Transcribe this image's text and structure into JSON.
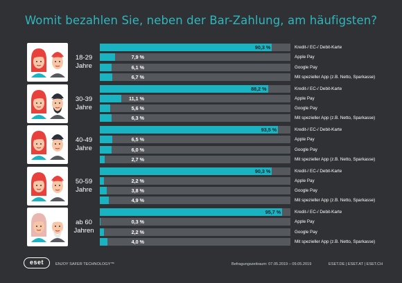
{
  "title": "Womit bezahlen Sie, neben der Bar-Zahlung, am häufigsten?",
  "footer": {
    "logo": "eset",
    "tagline": "ENJOY SAFER TECHNOLOGY™",
    "period": "Befragungszeitraum: 07.05.2019 – 09.05.2019",
    "links": "ESET.DE  |  ESET.AT  |  ESET.CH"
  },
  "colors": {
    "background": "#2f3135",
    "accent": "#19b3c1",
    "track": "#55585c",
    "title": "#2fb7bd"
  },
  "chart_data": {
    "type": "bar",
    "orientation": "horizontal",
    "xlim": [
      0,
      100
    ],
    "unit": "%",
    "categories": [
      "Kredit-/ EC-/ Debit-Karte",
      "Apple Pay",
      "Google Pay",
      "Mit spezieller App (z.B. Netto, Sparkasse)"
    ],
    "groups": [
      {
        "age": "18-29\nJahre",
        "values": [
          90.3,
          7.9,
          6.1,
          6.7
        ],
        "labels": [
          "90,3 %",
          "7,9 %",
          "6,1 %",
          "6,7 %"
        ]
      },
      {
        "age": "30-39\nJahre",
        "values": [
          88.2,
          11.1,
          5.6,
          6.3
        ],
        "labels": [
          "88,2 %",
          "11,1 %",
          "5,6 %",
          "6,3 %"
        ]
      },
      {
        "age": "40-49\nJahre",
        "values": [
          93.5,
          6.5,
          6.0,
          2.7
        ],
        "labels": [
          "93,5 %",
          "6,5 %",
          "6,0 %",
          "2,7 %"
        ]
      },
      {
        "age": "50-59\nJahre",
        "values": [
          90.3,
          2.2,
          3.8,
          4.9
        ],
        "labels": [
          "90,3 %",
          "2,2 %",
          "3,8 %",
          "4,9 %"
        ]
      },
      {
        "age": "ab 60\nJahren",
        "values": [
          95.7,
          0.3,
          2.2,
          4.0
        ],
        "labels": [
          "95,7 %",
          "0,3 %",
          "2,2 %",
          "4,0 %"
        ]
      }
    ]
  }
}
